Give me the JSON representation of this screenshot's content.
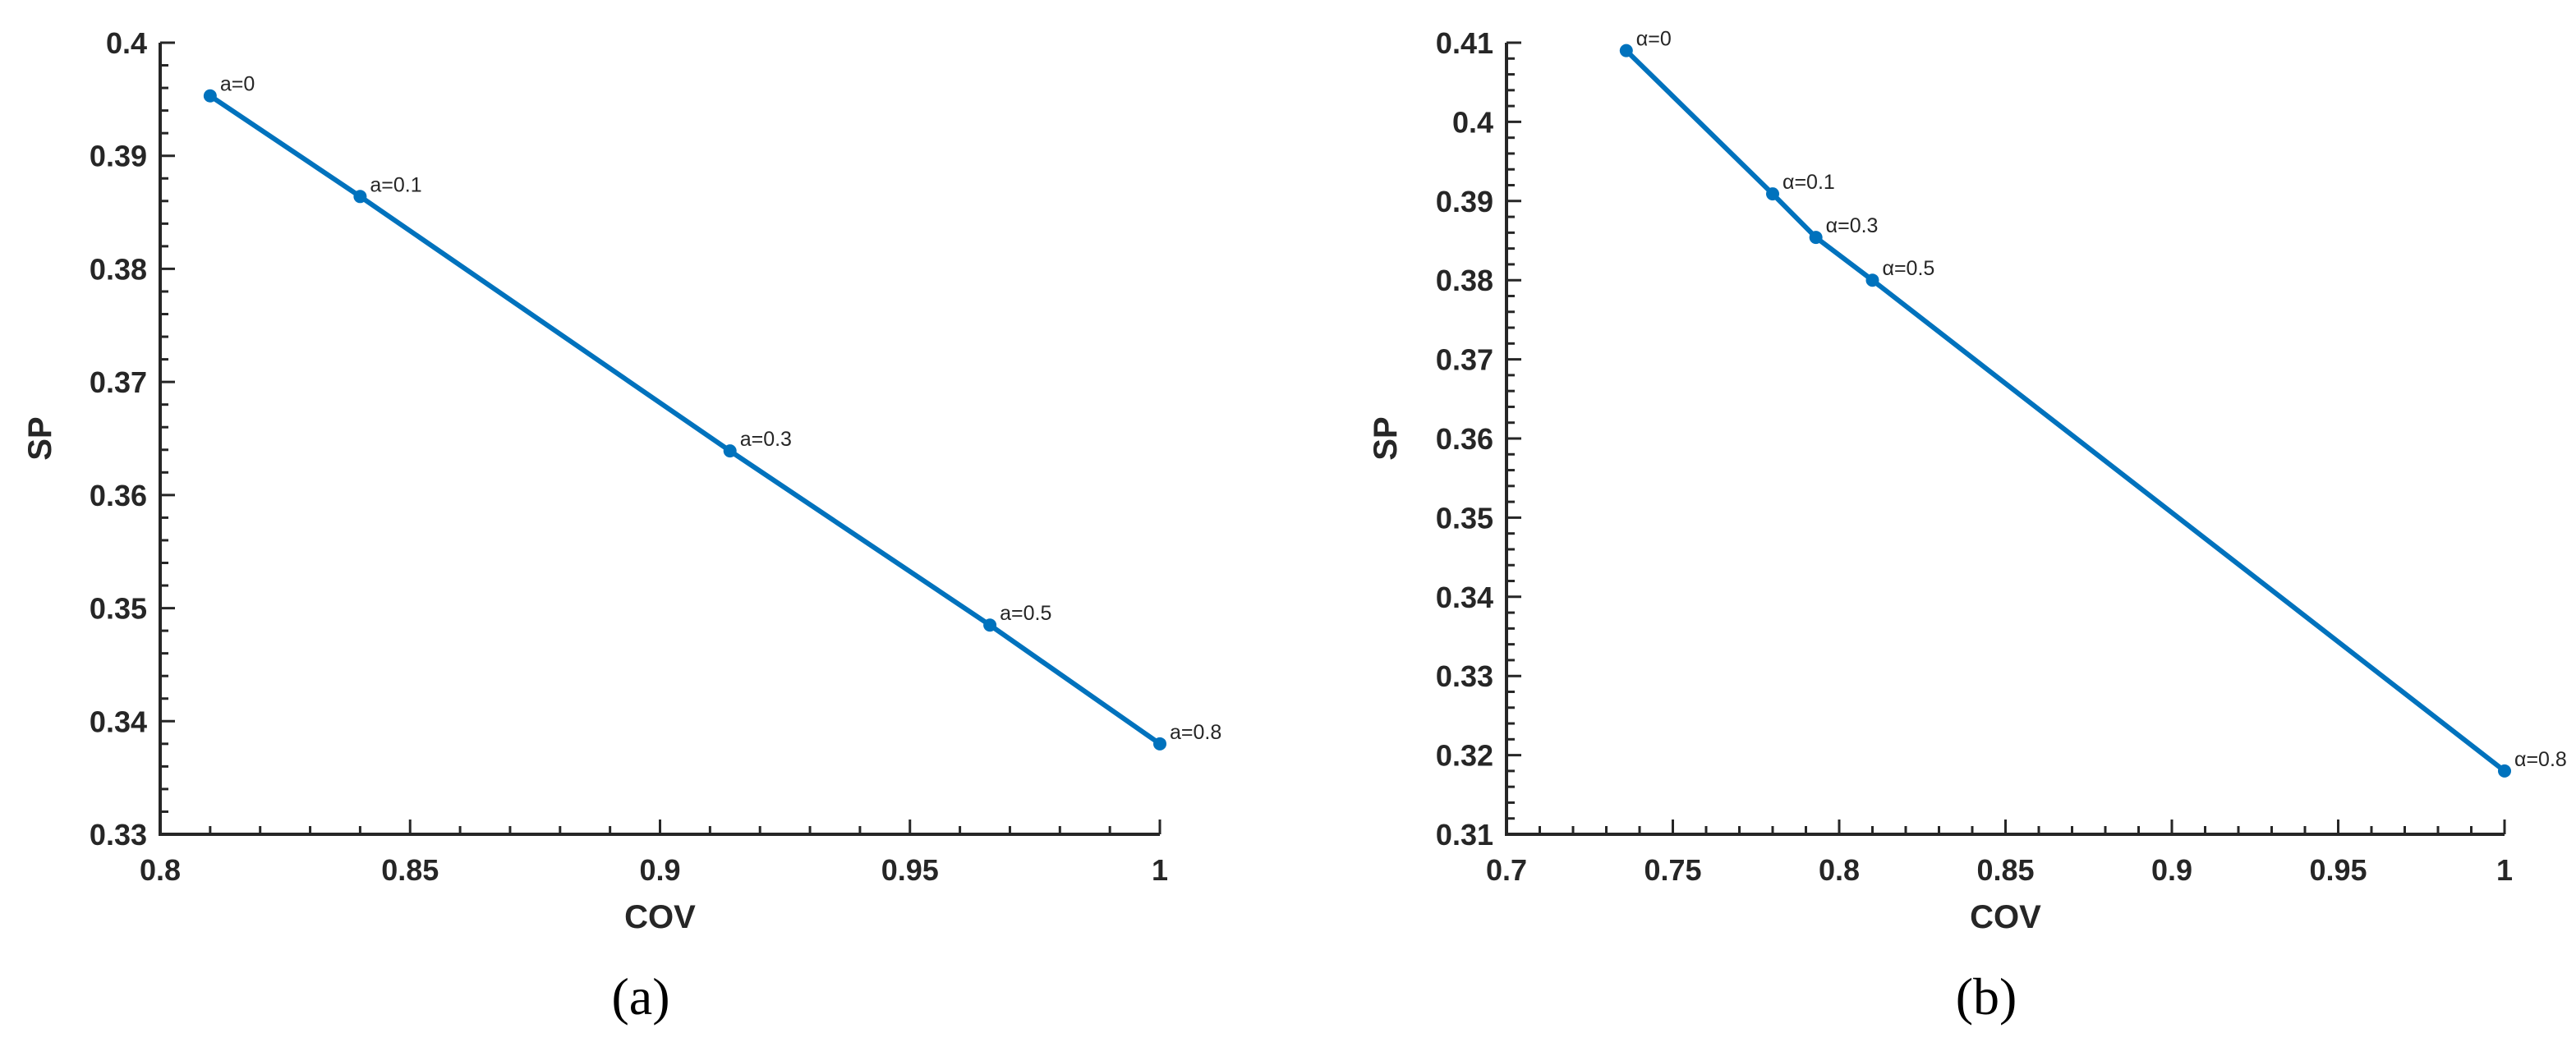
{
  "colors": {
    "series": "#0072BD",
    "axis": "#262626"
  },
  "chart_data": [
    {
      "type": "line",
      "panel_label": "(a)",
      "xlabel": "COV",
      "ylabel": "SP",
      "xlim": [
        0.8,
        1
      ],
      "ylim": [
        0.33,
        0.4
      ],
      "xticks": [
        0.8,
        0.85,
        0.9,
        0.95,
        1
      ],
      "xtick_labels": [
        "0.8",
        "0.85",
        "0.9",
        "0.95",
        "1"
      ],
      "yticks": [
        0.33,
        0.34,
        0.35,
        0.36,
        0.37,
        0.38,
        0.39,
        0.4
      ],
      "ytick_labels": [
        "0.33",
        "0.34",
        "0.35",
        "0.36",
        "0.37",
        "0.38",
        "0.39",
        "0.4"
      ],
      "grid": false,
      "series": [
        {
          "x": [
            0.81,
            0.84,
            0.914,
            0.966,
            1.0
          ],
          "y": [
            0.3953,
            0.3864,
            0.3639,
            0.3485,
            0.338
          ],
          "point_labels": [
            "a=0",
            "a=0.1",
            "a=0.3",
            "a=0.5",
            "a=0.8"
          ]
        }
      ]
    },
    {
      "type": "line",
      "panel_label": "(b)",
      "xlabel": "COV",
      "ylabel": "SP",
      "xlim": [
        0.7,
        1
      ],
      "ylim": [
        0.31,
        0.41
      ],
      "xticks": [
        0.7,
        0.75,
        0.8,
        0.85,
        0.9,
        0.95,
        1
      ],
      "xtick_labels": [
        "0.7",
        "0.75",
        "0.8",
        "0.85",
        "0.9",
        "0.95",
        "1"
      ],
      "yticks": [
        0.31,
        0.32,
        0.33,
        0.34,
        0.35,
        0.36,
        0.37,
        0.38,
        0.39,
        0.4,
        0.41
      ],
      "ytick_labels": [
        "0.31",
        "0.32",
        "0.33",
        "0.34",
        "0.35",
        "0.36",
        "0.37",
        "0.38",
        "0.39",
        "0.4",
        "0.41"
      ],
      "grid": false,
      "series": [
        {
          "x": [
            0.736,
            0.78,
            0.793,
            0.81,
            1.0
          ],
          "y": [
            0.409,
            0.3909,
            0.3854,
            0.38,
            0.318
          ],
          "point_labels": [
            "α=0",
            "α=0.1",
            "α=0.3",
            "α=0.5",
            "α=0.8"
          ]
        }
      ]
    }
  ]
}
